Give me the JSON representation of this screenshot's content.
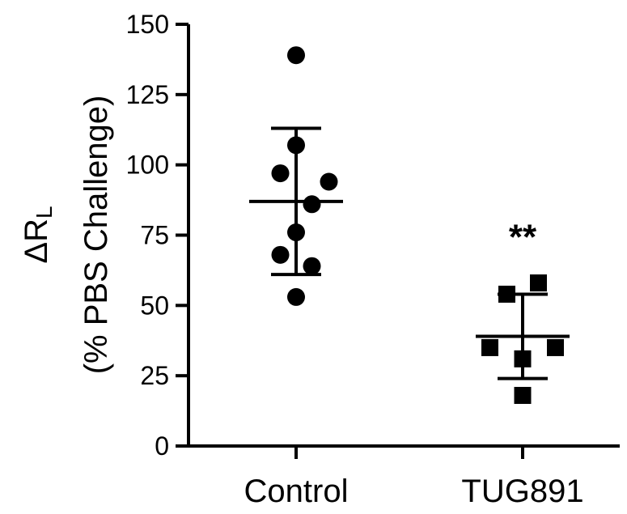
{
  "chart_data": {
    "type": "scatter",
    "ylabel_line1": "ΔR",
    "ylabel_sub": "L",
    "ylabel_line2": "(% PBS Challenge)",
    "ylim": [
      0,
      150
    ],
    "yticks": [
      0,
      25,
      50,
      75,
      100,
      125,
      150
    ],
    "ytick_labels": [
      "0",
      "25",
      "50",
      "75",
      "100",
      "125",
      "150"
    ],
    "grid": false,
    "categories": [
      "Control",
      "TUG891"
    ],
    "series": [
      {
        "category": "Control",
        "marker": "circle",
        "points": [
          {
            "x": 0,
            "y": 139
          },
          {
            "x": 0,
            "y": 107
          },
          {
            "x": -0.13,
            "y": 97
          },
          {
            "x": 0.27,
            "y": 94
          },
          {
            "x": 0.13,
            "y": 86
          },
          {
            "x": 0,
            "y": 76
          },
          {
            "x": -0.13,
            "y": 68
          },
          {
            "x": 0.13,
            "y": 64
          },
          {
            "x": 0,
            "y": 53
          }
        ],
        "mean": 87,
        "sd_upper": 113,
        "sd_lower": 61
      },
      {
        "category": "TUG891",
        "marker": "square",
        "points": [
          {
            "x": 0.13,
            "y": 58
          },
          {
            "x": -0.13,
            "y": 54
          },
          {
            "x": -0.27,
            "y": 35
          },
          {
            "x": 0.27,
            "y": 35
          },
          {
            "x": 0,
            "y": 31
          },
          {
            "x": 0,
            "y": 18
          }
        ],
        "mean": 39,
        "sd_upper": 54,
        "sd_lower": 24
      }
    ],
    "annotations": [
      {
        "category": "TUG891",
        "y": 77,
        "text": "**"
      }
    ]
  }
}
